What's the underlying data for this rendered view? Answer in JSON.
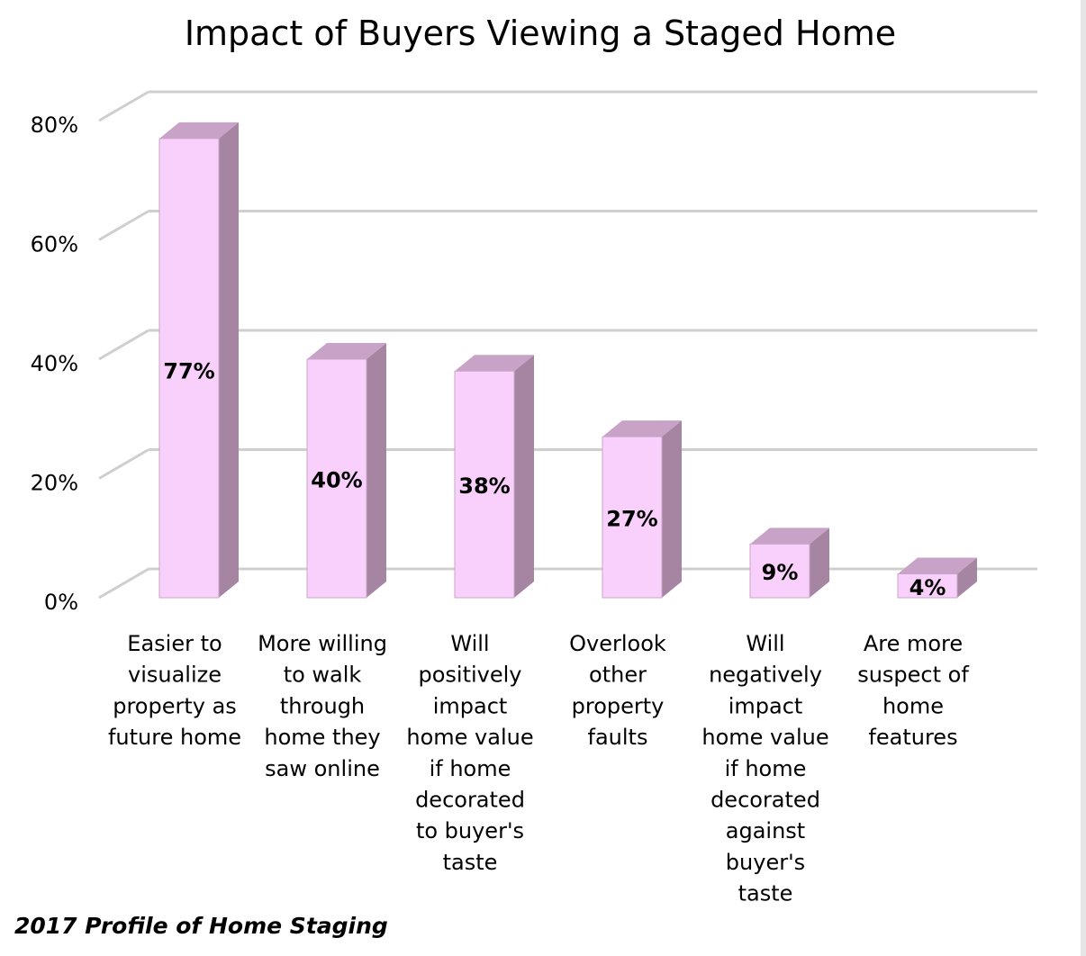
{
  "chart_data": {
    "type": "bar",
    "title": "Impact of Buyers Viewing a Staged Home",
    "source": "2017 Profile of Home Staging",
    "categories": [
      "Easier to visualize property as future home",
      "More willing to walk through home they saw online",
      "Will positively impact home value if home decorated to buyer's taste",
      "Overlook other property faults",
      "Will negatively impact home value if home decorated against buyer's taste",
      "Are more suspect of home features"
    ],
    "category_lines": [
      [
        "Easier to",
        "visualize",
        "property as",
        "future home"
      ],
      [
        "More willing",
        "to walk",
        "through",
        "home they",
        "saw online"
      ],
      [
        "Will",
        "positively",
        "impact",
        "home value",
        "if home",
        "decorated",
        "to buyer's",
        "taste"
      ],
      [
        "Overlook",
        "other",
        "property",
        "faults"
      ],
      [
        "Will",
        "negatively",
        "impact",
        "home value",
        "if home",
        "decorated",
        "against",
        "buyer's",
        "taste"
      ],
      [
        "Are more",
        "suspect of",
        "home",
        "features"
      ]
    ],
    "values": [
      77,
      40,
      38,
      27,
      9,
      4
    ],
    "data_labels": [
      "77%",
      "40%",
      "38%",
      "27%",
      "9%",
      "4%"
    ],
    "yticks": [
      0,
      20,
      40,
      60,
      80
    ],
    "ytick_labels": [
      "0%",
      "20%",
      "40%",
      "60%",
      "80%"
    ],
    "ylim": [
      0,
      80
    ],
    "grid": true,
    "style": "3d-column",
    "colors": {
      "bar_front": "#f9d0fb",
      "bar_side": "#a685a3",
      "bar_top": "#c8a2c7",
      "bar_outline": "#c9a6c9",
      "grid": "#cfcfcf",
      "text": "#000000"
    }
  }
}
